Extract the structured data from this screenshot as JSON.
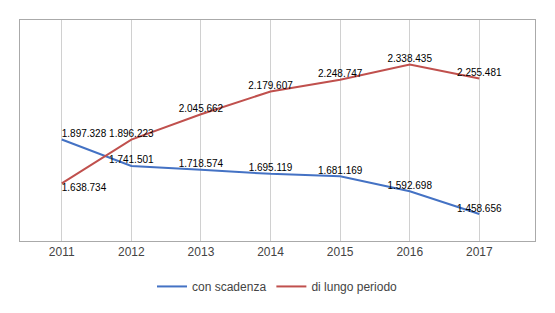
{
  "chart_data": {
    "type": "line",
    "x": [
      2011,
      2012,
      2013,
      2014,
      2015,
      2016,
      2017
    ],
    "xlim": [
      2010.4,
      2017.8
    ],
    "xticks": [
      2011,
      2012,
      2013,
      2014,
      2015,
      2016,
      2017
    ],
    "ylim": [
      1300000,
      2600000
    ],
    "tick_labels": "x",
    "grid": "x",
    "legend": "bottom",
    "data_labels": true,
    "series": [
      {
        "name": "con scadenza",
        "color": "#4472c4",
        "values": [
          1897328,
          1741501,
          1718574,
          1695119,
          1681169,
          1592698,
          1458656
        ],
        "value_labels": [
          "1.897.328",
          "1.741.501",
          "1.718.574",
          "1.695.119",
          "1.681.169",
          "1.592.698",
          "1.458.656"
        ]
      },
      {
        "name": "di lungo periodo",
        "color": "#c0504d",
        "values": [
          1638734,
          1896223,
          2045662,
          2179607,
          2248747,
          2338435,
          2255481
        ],
        "value_labels": [
          "1.638.734",
          "1.896.223",
          "2.045.662",
          "2.179.607",
          "2.248.747",
          "2.338.435",
          "2.255.481"
        ]
      }
    ]
  }
}
